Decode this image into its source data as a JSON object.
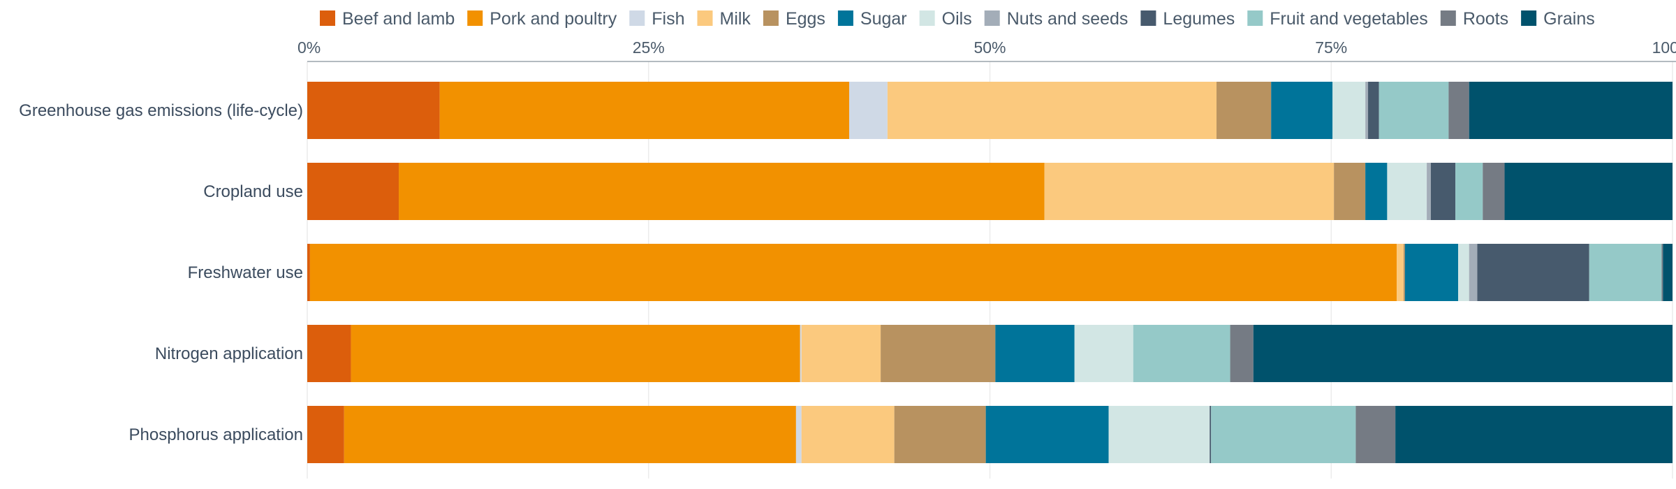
{
  "chart_data": {
    "type": "bar",
    "orientation": "horizontal",
    "stacked": true,
    "normalized": true,
    "title": "",
    "xlabel": "",
    "ylabel": "",
    "xlim": [
      0,
      100
    ],
    "x_tick_labels": [
      "0%",
      "25%",
      "50%",
      "75%",
      "100%"
    ],
    "x_ticks": [
      0,
      25,
      50,
      75,
      100
    ],
    "legend_position": "top",
    "grid": true,
    "categories": [
      "Greenhouse gas emissions (life-cycle)",
      "Cropland use",
      "Freshwater use",
      "Nitrogen application",
      "Phosphorus application"
    ],
    "series": [
      {
        "name": "Beef and lamb",
        "color": "#dc5e0c",
        "values": [
          9.7,
          6.7,
          0.2,
          3.2,
          2.7
        ]
      },
      {
        "name": "Pork and poultry",
        "color": "#f29100",
        "values": [
          30.0,
          47.3,
          79.6,
          32.9,
          33.1
        ]
      },
      {
        "name": "Fish",
        "color": "#cfd9e6",
        "values": [
          2.8,
          0.0,
          0.0,
          0.1,
          0.4
        ]
      },
      {
        "name": "Milk",
        "color": "#fbc97e",
        "values": [
          24.1,
          21.2,
          0.5,
          5.8,
          6.8
        ]
      },
      {
        "name": "Eggs",
        "color": "#b89260",
        "values": [
          4.0,
          2.3,
          0.1,
          8.4,
          6.7
        ]
      },
      {
        "name": "Sugar",
        "color": "#00749a",
        "values": [
          4.5,
          1.6,
          3.9,
          5.8,
          9.0
        ]
      },
      {
        "name": "Oils",
        "color": "#d2e6e4",
        "values": [
          2.4,
          2.9,
          0.8,
          4.3,
          7.4
        ]
      },
      {
        "name": "Nuts and seeds",
        "color": "#a3adb8",
        "values": [
          0.2,
          0.3,
          0.6,
          0.0,
          0.0
        ]
      },
      {
        "name": "Legumes",
        "color": "#475a6d",
        "values": [
          0.8,
          1.8,
          8.2,
          0.0,
          0.1
        ]
      },
      {
        "name": "Fruit and vegetables",
        "color": "#95c9c8",
        "values": [
          5.1,
          2.0,
          5.3,
          7.1,
          10.6
        ]
      },
      {
        "name": "Roots",
        "color": "#757b84",
        "values": [
          1.5,
          1.6,
          0.1,
          1.7,
          2.9
        ]
      },
      {
        "name": "Grains",
        "color": "#00526c",
        "values": [
          14.9,
          12.3,
          0.7,
          30.7,
          20.3
        ]
      }
    ]
  }
}
